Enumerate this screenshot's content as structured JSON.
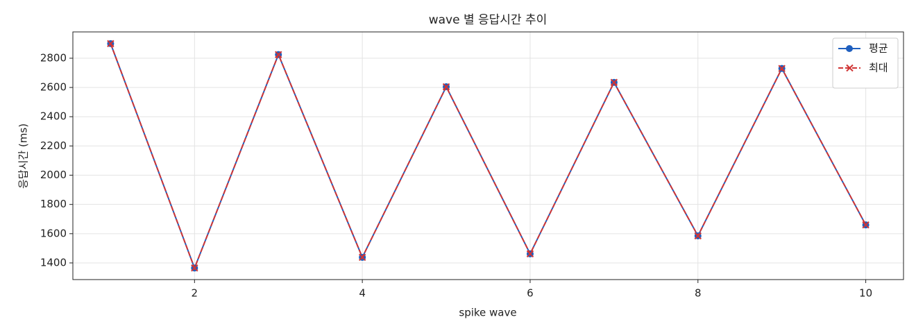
{
  "chart_data": {
    "type": "line",
    "title": "wave 별 응답시간 추이",
    "x_label": "spike wave",
    "y_label": "응답시간 (ms)",
    "x": [
      1,
      2,
      3,
      4,
      5,
      6,
      7,
      8,
      9,
      10
    ],
    "series": [
      {
        "name": "평균",
        "color": "#1f5fbf",
        "marker": "o",
        "linestyle": "solid",
        "values": [
          2900,
          1365,
          2825,
          1438,
          2605,
          1462,
          2635,
          1585,
          2730,
          1660
        ]
      },
      {
        "name": "최대",
        "color": "#d03535",
        "marker": "x",
        "linestyle": "dashed",
        "values": [
          2900,
          1365,
          2825,
          1438,
          2605,
          1462,
          2635,
          1585,
          2730,
          1660
        ]
      }
    ],
    "xlim": [
      0.55,
      10.45
    ],
    "xticks": [
      2,
      4,
      6,
      8,
      10
    ],
    "ylim": [
      1286,
      2980
    ],
    "yticks": [
      1400,
      1600,
      1800,
      2000,
      2200,
      2400,
      2600,
      2800
    ],
    "grid": true,
    "legend": "upper right"
  }
}
